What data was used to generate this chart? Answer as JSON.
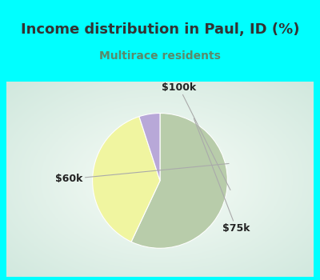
{
  "title": "Income distribution in Paul, ID (%)",
  "subtitle": "Multirace residents",
  "title_color": "#333333",
  "subtitle_color": "#5a8a6a",
  "top_bg_color": "#00ffff",
  "chart_bg_color": "#c8e8d8",
  "slices": [
    {
      "label": "$75k",
      "value": 57,
      "color": "#b8ccaa"
    },
    {
      "label": "$60k",
      "value": 38,
      "color": "#f0f5a0"
    },
    {
      "label": "$100k",
      "value": 5,
      "color": "#b8a8d8"
    }
  ],
  "startangle": 90,
  "label_fontsize": 9,
  "title_fontsize": 13,
  "subtitle_fontsize": 10
}
